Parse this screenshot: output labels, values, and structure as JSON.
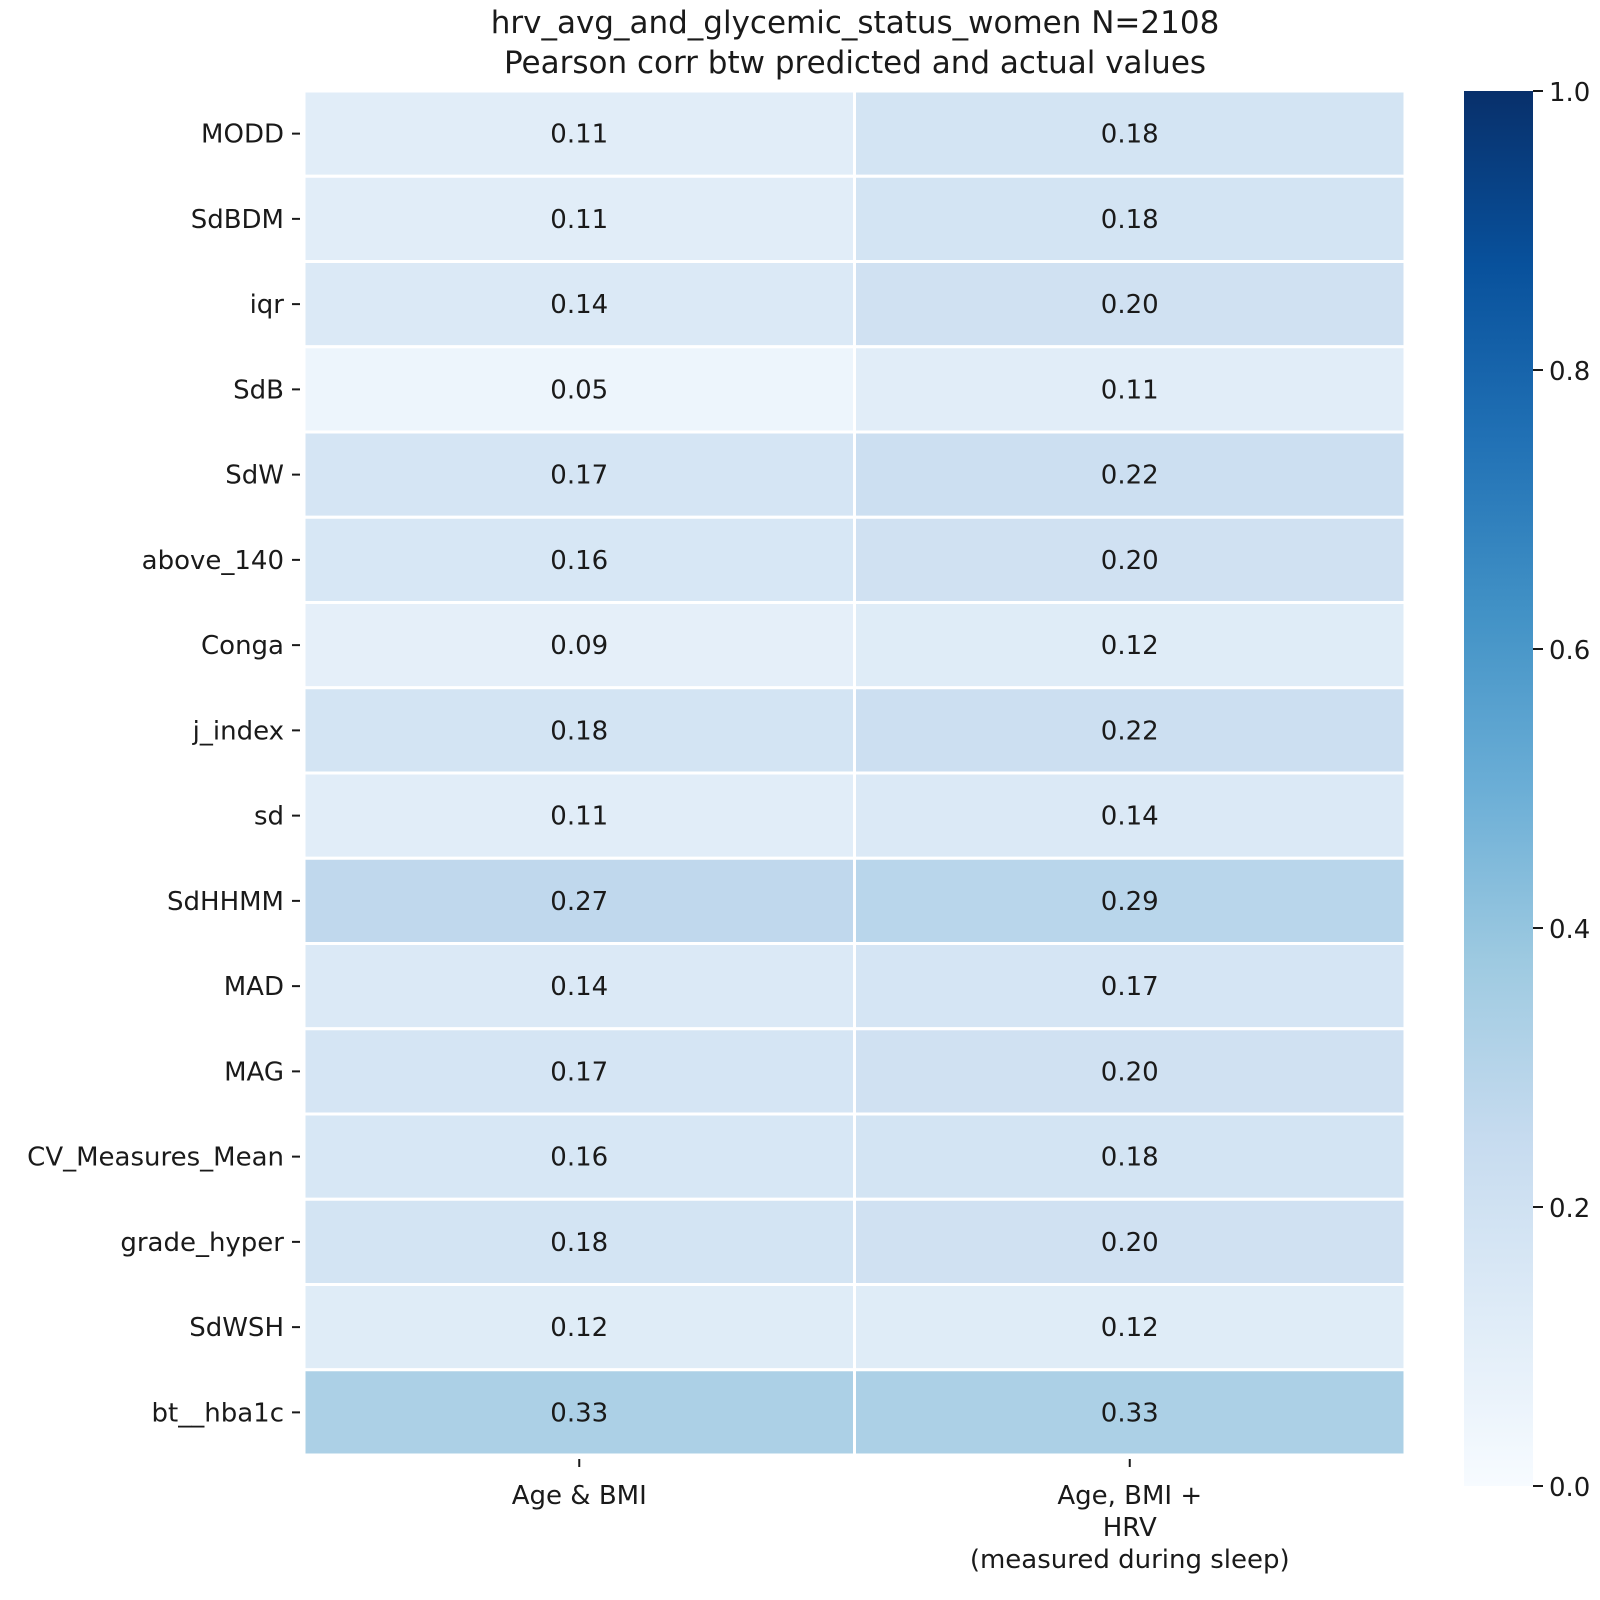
{
  "chart_data": {
    "type": "heatmap",
    "title_lines": [
      "hrv_avg_and_glycemic_status_women N=2108",
      "Pearson corr btw predicted and actual values"
    ],
    "columns": [
      {
        "label_lines": [
          "Age & BMI"
        ]
      },
      {
        "label_lines": [
          "Age, BMI +",
          "HRV",
          "(measured during sleep)"
        ]
      }
    ],
    "rows": [
      {
        "label": "MODD",
        "values": [
          0.11,
          0.18
        ],
        "labels": [
          "0.11",
          "0.18"
        ]
      },
      {
        "label": "SdBDM",
        "values": [
          0.11,
          0.18
        ],
        "labels": [
          "0.11",
          "0.18"
        ]
      },
      {
        "label": "iqr",
        "values": [
          0.14,
          0.2
        ],
        "labels": [
          "0.14",
          "0.20"
        ]
      },
      {
        "label": "SdB",
        "values": [
          0.05,
          0.11
        ],
        "labels": [
          "0.05",
          "0.11"
        ]
      },
      {
        "label": "SdW",
        "values": [
          0.17,
          0.22
        ],
        "labels": [
          "0.17",
          "0.22"
        ]
      },
      {
        "label": "above_140",
        "values": [
          0.16,
          0.2
        ],
        "labels": [
          "0.16",
          "0.20"
        ]
      },
      {
        "label": "Conga",
        "values": [
          0.09,
          0.12
        ],
        "labels": [
          "0.09",
          "0.12"
        ]
      },
      {
        "label": "j_index",
        "values": [
          0.18,
          0.22
        ],
        "labels": [
          "0.18",
          "0.22"
        ]
      },
      {
        "label": "sd",
        "values": [
          0.11,
          0.14
        ],
        "labels": [
          "0.11",
          "0.14"
        ]
      },
      {
        "label": "SdHHMM",
        "values": [
          0.27,
          0.29
        ],
        "labels": [
          "0.27",
          "0.29"
        ]
      },
      {
        "label": "MAD",
        "values": [
          0.14,
          0.17
        ],
        "labels": [
          "0.14",
          "0.17"
        ]
      },
      {
        "label": "MAG",
        "values": [
          0.17,
          0.2
        ],
        "labels": [
          "0.17",
          "0.20"
        ]
      },
      {
        "label": "CV_Measures_Mean",
        "values": [
          0.16,
          0.18
        ],
        "labels": [
          "0.16",
          "0.18"
        ]
      },
      {
        "label": "grade_hyper",
        "values": [
          0.18,
          0.2
        ],
        "labels": [
          "0.18",
          "0.20"
        ]
      },
      {
        "label": "SdWSH",
        "values": [
          0.12,
          0.12
        ],
        "labels": [
          "0.12",
          "0.12"
        ]
      },
      {
        "label": "bt__hba1c",
        "values": [
          0.33,
          0.33
        ],
        "labels": [
          "0.33",
          "0.33"
        ]
      }
    ],
    "colorbar": {
      "colormap": "Blues",
      "range": [
        0.0,
        1.0
      ],
      "ticks": [
        "0.0",
        "0.2",
        "0.4",
        "0.6",
        "0.8",
        "1.0"
      ],
      "tick_values": [
        0.0,
        0.2,
        0.4,
        0.6,
        0.8,
        1.0
      ],
      "stops": [
        "#f7fbff",
        "#deebf7",
        "#c6dbef",
        "#9ecae1",
        "#6baed6",
        "#4292c6",
        "#2171b5",
        "#08519c",
        "#08306b"
      ]
    },
    "grid": false,
    "legend": "right"
  }
}
